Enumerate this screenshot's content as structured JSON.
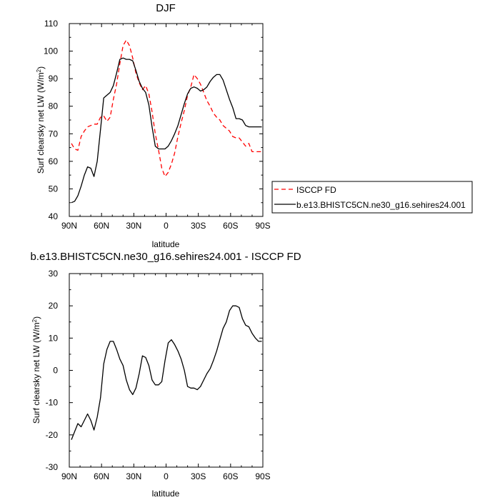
{
  "chart_data": [
    {
      "type": "line",
      "title": "DJF",
      "xlabel": "latitude",
      "ylabel": "Surf clearsky net LW (W/m2)",
      "ylabel_main": "Surf clearsky net LW (W/m",
      "ylabel_sup": "2",
      "ylabel_close": ")",
      "xlim": [
        90,
        -90
      ],
      "ylim": [
        40,
        110
      ],
      "x_ticks": [
        90,
        60,
        30,
        0,
        -30,
        -60,
        -90
      ],
      "x_tick_labels": [
        "90N",
        "60N",
        "30N",
        "0",
        "30S",
        "60S",
        "90S"
      ],
      "y_ticks": [
        40,
        50,
        60,
        70,
        80,
        90,
        100,
        110
      ],
      "y_tick_labels": [
        "40",
        "50",
        "60",
        "70",
        "80",
        "90",
        "100",
        "110"
      ],
      "legend": {
        "placement": "right",
        "entries": [
          "ISCCP FD",
          "b.e13.BHISTC5CN.ne30_g16.sehires24.001"
        ]
      },
      "series": [
        {
          "name": "ISCCP FD",
          "color": "#ff0000",
          "dash": true,
          "x": [
            88,
            85,
            82,
            79,
            76,
            73,
            70,
            67,
            64,
            61,
            58,
            55,
            52,
            49,
            46,
            43,
            40,
            37,
            34,
            31,
            28,
            25,
            22,
            19,
            16,
            13,
            10,
            7,
            4,
            1,
            -2,
            -5,
            -8,
            -11,
            -14,
            -17,
            -20,
            -23,
            -26,
            -29,
            -32,
            -35,
            -38,
            -41,
            -44,
            -47,
            -50,
            -53,
            -56,
            -59,
            -62,
            -65,
            -68,
            -71,
            -74,
            -77,
            -80,
            -83,
            -86,
            -89
          ],
          "values": [
            66.5,
            64.5,
            64,
            69,
            71,
            72.5,
            73,
            73.5,
            73.5,
            76,
            76.5,
            74.5,
            76,
            82.5,
            88,
            95.5,
            102,
            104,
            102,
            97.5,
            92,
            88.5,
            86,
            87.5,
            84.5,
            78,
            70,
            64,
            57.5,
            54.5,
            56,
            59,
            63,
            69,
            74,
            78.5,
            84,
            87,
            91.5,
            90,
            88,
            85,
            82,
            80,
            77.5,
            76,
            75,
            73,
            72,
            71,
            69,
            68.5,
            68.5,
            67,
            65.5,
            66.5,
            63.5,
            63.5,
            63.5,
            63.5
          ]
        },
        {
          "name": "b.e13.BHISTC5CN.ne30_g16.sehires24.001",
          "color": "#000000",
          "dash": false,
          "x": [
            88,
            85,
            82,
            79,
            76,
            73,
            70,
            67,
            64,
            61,
            58,
            55,
            52,
            49,
            46,
            43,
            40,
            37,
            34,
            31,
            28,
            25,
            22,
            19,
            16,
            13,
            10,
            7,
            4,
            1,
            -2,
            -5,
            -8,
            -11,
            -14,
            -17,
            -20,
            -23,
            -26,
            -29,
            -32,
            -35,
            -38,
            -41,
            -44,
            -47,
            -50,
            -53,
            -56,
            -59,
            -62,
            -65,
            -68,
            -71,
            -74,
            -77,
            -80,
            -83,
            -86,
            -89
          ],
          "values": [
            45,
            45.5,
            47.5,
            51,
            55,
            58,
            57.5,
            54.5,
            60,
            71.5,
            83,
            84,
            85,
            87.5,
            92,
            97,
            97.5,
            97,
            97,
            96.5,
            93,
            89,
            86.5,
            85,
            80.5,
            72.5,
            65.5,
            64.5,
            64.5,
            64.5,
            65.5,
            67.5,
            70,
            73,
            77,
            81,
            84.5,
            86.5,
            87,
            86.5,
            85.5,
            86,
            87,
            89,
            90.5,
            91.5,
            91.5,
            89.5,
            86,
            82.5,
            79.5,
            75.5,
            75.5,
            75,
            73,
            72.5,
            72.5,
            72.5,
            72.5,
            72.5
          ]
        }
      ]
    },
    {
      "type": "line",
      "title": "b.e13.BHISTC5CN.ne30_g16.sehires24.001 - ISCCP FD",
      "xlabel": "latitude",
      "ylabel": "Surf clearsky net LW (W/m2)",
      "ylabel_main": "Surf clearsky net LW (W/m",
      "ylabel_sup": "2",
      "ylabel_close": ")",
      "xlim": [
        90,
        -90
      ],
      "ylim": [
        -30,
        30
      ],
      "x_ticks": [
        90,
        60,
        30,
        0,
        -30,
        -60,
        -90
      ],
      "x_tick_labels": [
        "90N",
        "60N",
        "30N",
        "0",
        "30S",
        "60S",
        "90S"
      ],
      "y_ticks": [
        -30,
        -20,
        -10,
        0,
        10,
        20,
        30
      ],
      "y_tick_labels": [
        "-30",
        "-20",
        "-10",
        "0",
        "10",
        "20",
        "30"
      ],
      "series": [
        {
          "name": "b.e13.BHISTC5CN.ne30_g16.sehires24.001 - ISCCP FD",
          "color": "#000000",
          "dash": false,
          "x": [
            88,
            85,
            82,
            79,
            76,
            73,
            70,
            67,
            64,
            61,
            58,
            55,
            52,
            49,
            46,
            43,
            40,
            37,
            34,
            31,
            28,
            25,
            22,
            19,
            16,
            13,
            10,
            7,
            4,
            1,
            -2,
            -5,
            -8,
            -11,
            -14,
            -17,
            -20,
            -23,
            -26,
            -29,
            -32,
            -35,
            -38,
            -41,
            -44,
            -47,
            -50,
            -53,
            -56,
            -59,
            -62,
            -65,
            -68,
            -71,
            -74,
            -77,
            -80,
            -83,
            -86,
            -89
          ],
          "values": [
            -21.5,
            -19,
            -16.5,
            -17.5,
            -15.5,
            -13.5,
            -15.5,
            -18.5,
            -14.5,
            -8.5,
            2,
            6.5,
            9,
            9,
            6.5,
            3.5,
            1.5,
            -3,
            -6,
            -7.5,
            -5.5,
            -1,
            4.5,
            4,
            1.5,
            -3,
            -4.5,
            -4.5,
            -3.5,
            3,
            8.5,
            9.5,
            8,
            6,
            3.5,
            0,
            -5,
            -5.5,
            -5.5,
            -6,
            -5,
            -3,
            -1,
            0.5,
            3,
            6,
            9.5,
            13,
            15,
            18.5,
            20,
            20,
            19.5,
            16,
            14,
            13.5,
            11.5,
            10,
            9,
            9
          ]
        }
      ]
    }
  ]
}
